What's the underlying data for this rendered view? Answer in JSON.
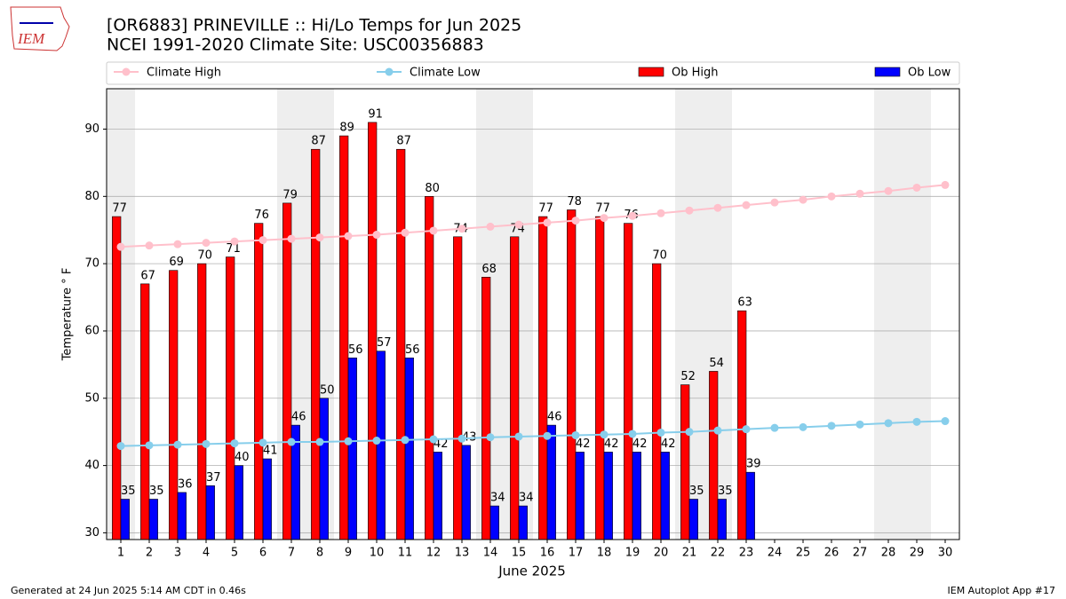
{
  "chart_data": {
    "type": "bar",
    "logo": "IEM",
    "title": "[OR6883] PRINEVILLE :: Hi/Lo Temps for Jun 2025",
    "subtitle": "NCEI 1991-2020 Climate Site: USC00356883",
    "x_label": "June 2025",
    "y_label": "Temperature $^\\circ$F",
    "footer_left": "Generated at 24 Jun 2025 5:14 AM CDT in 0.46s",
    "footer_right": "IEM Autoplot App #17",
    "x": [
      1,
      2,
      3,
      4,
      5,
      6,
      7,
      8,
      9,
      10,
      11,
      12,
      13,
      14,
      15,
      16,
      17,
      18,
      19,
      20,
      21,
      22,
      23,
      24,
      25,
      26,
      27,
      28,
      29,
      30
    ],
    "xlim": [
      0.5,
      30.5
    ],
    "xticks": [
      1,
      2,
      3,
      4,
      5,
      6,
      7,
      8,
      9,
      10,
      11,
      12,
      13,
      14,
      15,
      16,
      17,
      18,
      19,
      20,
      21,
      22,
      23,
      24,
      25,
      26,
      27,
      28,
      29,
      30
    ],
    "ylim": [
      29,
      96
    ],
    "yticks": [
      30,
      40,
      50,
      60,
      70,
      80,
      90
    ],
    "grid": true,
    "shaded_days": [
      1,
      7,
      8,
      14,
      15,
      21,
      22,
      28,
      29
    ],
    "series": [
      {
        "name": "Climate High",
        "type": "line",
        "color": "#ffc0cb",
        "values": [
          72.5,
          72.7,
          72.9,
          73.1,
          73.3,
          73.5,
          73.7,
          73.9,
          74.1,
          74.3,
          74.6,
          74.9,
          75.2,
          75.5,
          75.8,
          76.1,
          76.4,
          76.8,
          77.1,
          77.5,
          77.9,
          78.3,
          78.7,
          79.1,
          79.5,
          80.0,
          80.4,
          80.8,
          81.3,
          81.7
        ]
      },
      {
        "name": "Climate Low",
        "type": "line",
        "color": "#87ceeb",
        "values": [
          42.9,
          43.0,
          43.1,
          43.2,
          43.3,
          43.4,
          43.5,
          43.5,
          43.6,
          43.7,
          43.8,
          43.9,
          44.0,
          44.2,
          44.3,
          44.4,
          44.5,
          44.6,
          44.7,
          44.9,
          45.0,
          45.2,
          45.4,
          45.6,
          45.7,
          45.9,
          46.1,
          46.3,
          46.5,
          46.6
        ]
      },
      {
        "name": "Ob High",
        "type": "bar",
        "color": "#ff0000",
        "values": [
          77,
          67,
          69,
          70,
          71,
          76,
          79,
          87,
          89,
          91,
          87,
          80,
          74,
          68,
          74,
          77,
          78,
          77,
          76,
          70,
          52,
          54,
          63,
          null,
          null,
          null,
          null,
          null,
          null,
          null
        ]
      },
      {
        "name": "Ob Low",
        "type": "bar",
        "color": "#0000ff",
        "values": [
          35,
          35,
          36,
          37,
          40,
          41,
          46,
          50,
          56,
          57,
          56,
          42,
          43,
          34,
          34,
          46,
          42,
          42,
          42,
          42,
          35,
          35,
          39,
          null,
          null,
          null,
          null,
          null,
          null,
          null
        ]
      }
    ]
  }
}
